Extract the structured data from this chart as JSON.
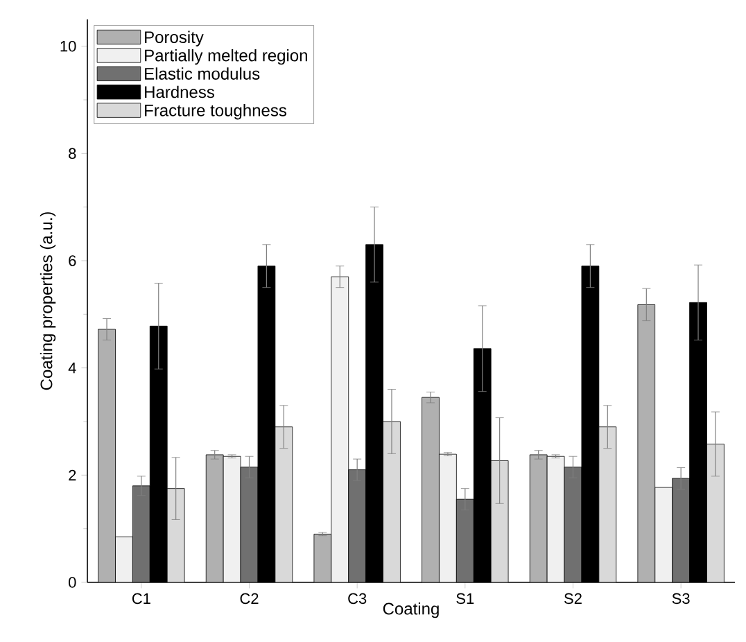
{
  "chart_data": {
    "type": "bar",
    "xlabel": "Coating",
    "ylabel": "Coating properties (a.u.)",
    "categories": [
      "C1",
      "C2",
      "C3",
      "S1",
      "S2",
      "S3"
    ],
    "series": [
      {
        "name": "Porosity",
        "color": "#b0b0b0",
        "values": [
          4.72,
          2.38,
          0.9,
          3.45,
          2.38,
          5.18
        ],
        "errors": [
          0.2,
          0.08,
          0.03,
          0.1,
          0.08,
          0.3
        ]
      },
      {
        "name": "Partially melted region",
        "color": "#f0f0f0",
        "values": [
          0.85,
          2.35,
          5.7,
          2.39,
          2.35,
          1.77
        ],
        "errors": [
          null,
          0.03,
          0.2,
          0.03,
          0.03,
          null
        ]
      },
      {
        "name": "Elastic modulus",
        "color": "#707070",
        "values": [
          1.8,
          2.15,
          2.1,
          1.55,
          2.15,
          1.94
        ],
        "errors": [
          0.18,
          0.2,
          0.2,
          0.2,
          0.2,
          0.2
        ]
      },
      {
        "name": "Hardness",
        "color": "#000000",
        "values": [
          4.78,
          5.9,
          6.3,
          4.36,
          5.9,
          5.22
        ],
        "errors": [
          0.8,
          0.4,
          0.7,
          0.8,
          0.4,
          0.7
        ]
      },
      {
        "name": "Fracture toughness",
        "color": "#d9d9d9",
        "values": [
          1.75,
          2.9,
          3.0,
          2.27,
          2.9,
          2.58
        ],
        "errors": [
          0.58,
          0.4,
          0.6,
          0.8,
          0.4,
          0.6
        ]
      }
    ],
    "ylim": [
      0,
      10.5
    ],
    "yticks": [
      0,
      2,
      4,
      6,
      8,
      10
    ],
    "legend": "top left",
    "grid": false
  }
}
